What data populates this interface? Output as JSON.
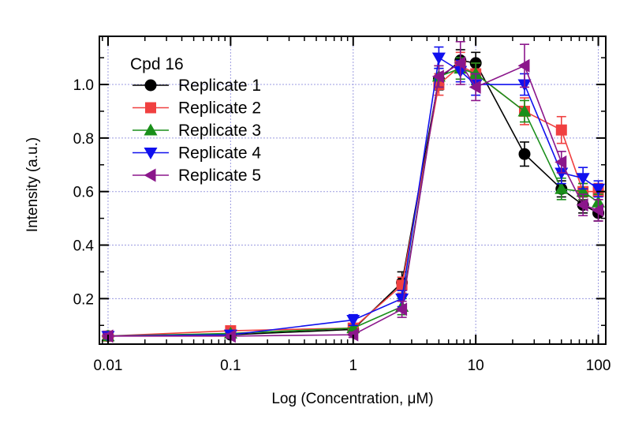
{
  "chart_data": {
    "type": "line",
    "title": "",
    "legend_title": "Cpd 16",
    "legend_position": "top-left",
    "xlabel": "Log (Concentration, μM)",
    "ylabel": "Intensity (a.u.)",
    "xscale": "log",
    "xlim": [
      0.0085,
      115
    ],
    "ylim": [
      0.03,
      1.18
    ],
    "xticks": [
      0.01,
      0.1,
      1,
      10,
      100
    ],
    "xtick_labels": [
      "0.01",
      "0.1",
      "1",
      "10",
      "100"
    ],
    "yticks": [
      0.2,
      0.4,
      0.6,
      0.8,
      1.0
    ],
    "ytick_labels": [
      "0.2",
      "0.4",
      "0.6",
      "0.8",
      "1.0"
    ],
    "grid": true,
    "x": [
      0.01,
      0.1,
      1,
      2.5,
      5,
      7.5,
      10,
      25,
      50,
      75,
      100
    ],
    "series": [
      {
        "name": "Replicate 1",
        "color": "#000000",
        "marker": "circle",
        "values": [
          0.06,
          0.065,
          0.085,
          0.26,
          1.02,
          1.09,
          1.08,
          0.74,
          0.61,
          0.55,
          0.52
        ],
        "errors": [
          0.01,
          0.008,
          0.01,
          0.04,
          0.04,
          0.04,
          0.04,
          0.045,
          0.03,
          0.03,
          0.03
        ]
      },
      {
        "name": "Replicate 2",
        "color": "#f04040",
        "marker": "square",
        "values": [
          0.06,
          0.08,
          0.09,
          0.25,
          1.0,
          1.07,
          1.04,
          0.9,
          0.83,
          0.6,
          0.6
        ],
        "errors": [
          0.01,
          0.01,
          0.01,
          0.03,
          0.04,
          0.05,
          0.04,
          0.05,
          0.05,
          0.03,
          0.03
        ]
      },
      {
        "name": "Replicate 3",
        "color": "#1a8f1a",
        "marker": "triangle-up",
        "values": [
          0.06,
          0.07,
          0.09,
          0.17,
          1.03,
          1.06,
          1.04,
          0.9,
          0.61,
          0.6,
          0.56
        ],
        "errors": [
          0.01,
          0.008,
          0.01,
          0.03,
          0.04,
          0.04,
          0.04,
          0.04,
          0.04,
          0.03,
          0.03
        ]
      },
      {
        "name": "Replicate 4",
        "color": "#1010ee",
        "marker": "triangle-down",
        "values": [
          0.06,
          0.065,
          0.12,
          0.2,
          1.1,
          1.05,
          1.0,
          1.0,
          0.67,
          0.65,
          0.61
        ],
        "errors": [
          0.01,
          0.008,
          0.02,
          0.03,
          0.04,
          0.04,
          0.04,
          0.04,
          0.04,
          0.04,
          0.03
        ]
      },
      {
        "name": "Replicate 5",
        "color": "#8b168b",
        "marker": "triangle-left",
        "values": [
          0.06,
          0.06,
          0.065,
          0.16,
          1.03,
          1.08,
          0.99,
          1.07,
          0.71,
          0.55,
          0.53
        ],
        "errors": [
          0.01,
          0.008,
          0.01,
          0.03,
          0.04,
          0.08,
          0.05,
          0.08,
          0.04,
          0.04,
          0.04
        ]
      }
    ]
  }
}
